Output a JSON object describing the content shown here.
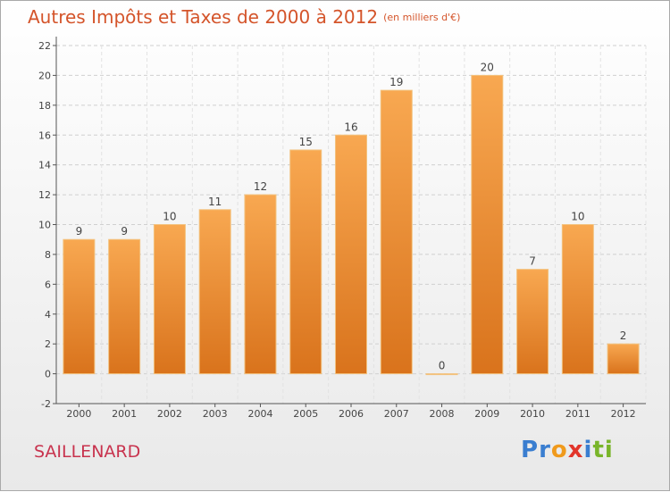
{
  "header": {
    "title": "Autres Impôts et Taxes de 2000 à 2012",
    "unit": "(en milliers d'€)"
  },
  "commune": "SAILLENARD",
  "logo": {
    "text": "Proxiti",
    "letters": [
      "P",
      "r",
      "o",
      "x",
      "i",
      "t",
      "i"
    ],
    "colors": [
      "#3a7ed0",
      "#3a7ed0",
      "#f09a1c",
      "#e2352a",
      "#3a7ed0",
      "#79b52a",
      "#79b52a"
    ]
  },
  "chart_data": {
    "type": "bar",
    "categories": [
      "2000",
      "2001",
      "2002",
      "2003",
      "2004",
      "2005",
      "2006",
      "2007",
      "2008",
      "2009",
      "2010",
      "2011",
      "2012"
    ],
    "values": [
      9,
      9,
      10,
      11,
      12,
      15,
      16,
      19,
      0,
      20,
      7,
      10,
      2
    ],
    "yticks": [
      -2,
      0,
      2,
      4,
      6,
      8,
      10,
      12,
      14,
      16,
      18,
      20,
      22
    ],
    "ylim": [
      -2,
      22
    ],
    "grid": true,
    "bar_color": "#f39a3c"
  }
}
